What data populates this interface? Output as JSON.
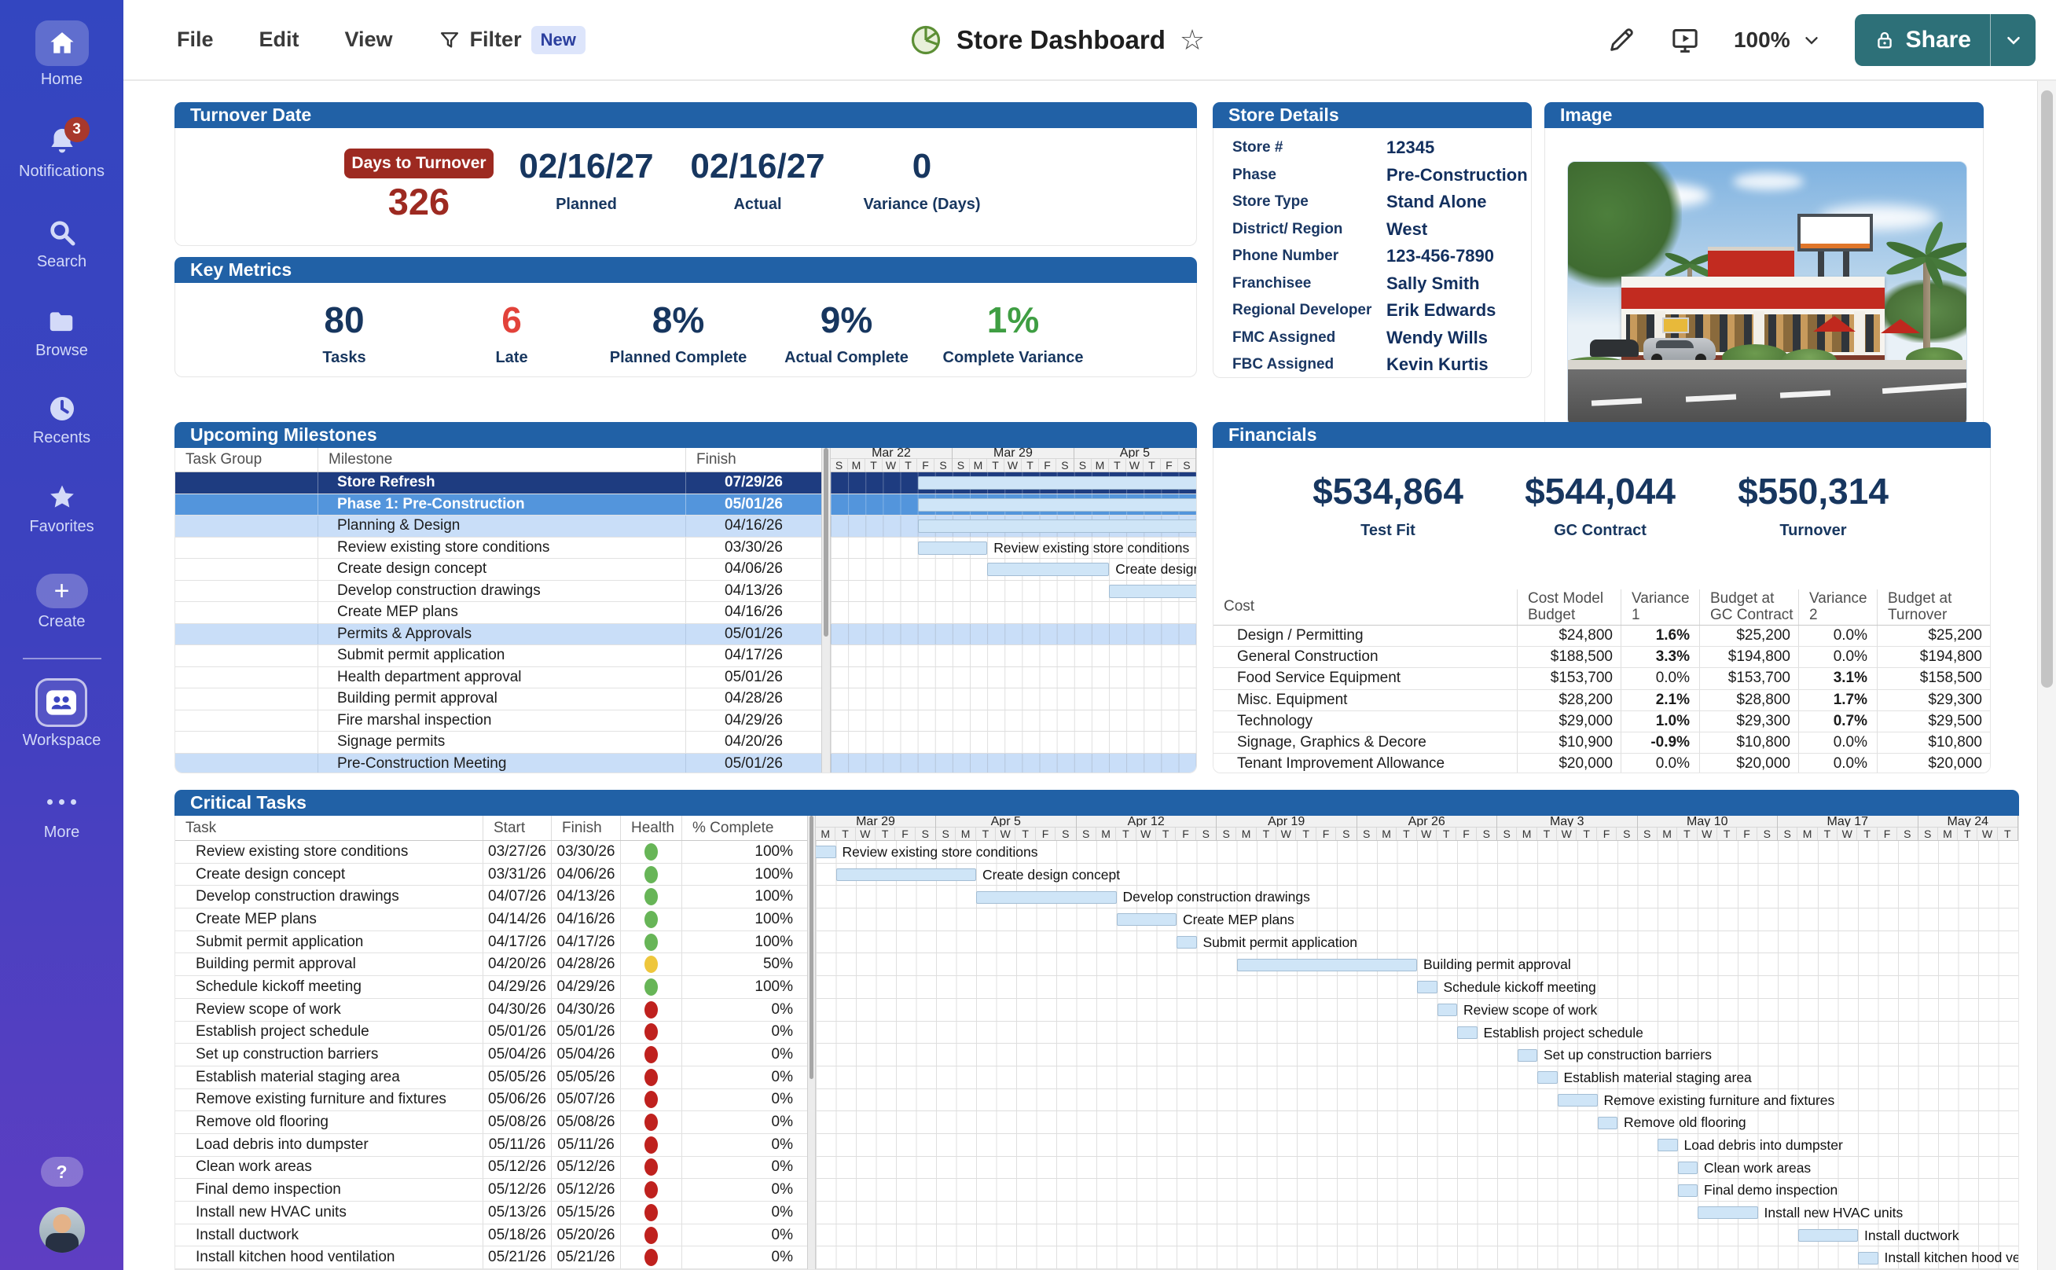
{
  "app": {
    "menu": [
      "File",
      "Edit",
      "View"
    ],
    "filter": {
      "label": "Filter",
      "badge": "New"
    },
    "title": "Store Dashboard",
    "zoom_level": "100%",
    "share_label": "Share"
  },
  "sidebar": {
    "items": [
      {
        "id": "home",
        "label": "Home",
        "icon": "home",
        "active": true
      },
      {
        "id": "notifications",
        "label": "Notifications",
        "icon": "bell",
        "badge": "3"
      },
      {
        "id": "search",
        "label": "Search",
        "icon": "search"
      },
      {
        "id": "browse",
        "label": "Browse",
        "icon": "folder"
      },
      {
        "id": "recents",
        "label": "Recents",
        "icon": "clock"
      },
      {
        "id": "favorites",
        "label": "Favorites",
        "icon": "star"
      },
      {
        "id": "create",
        "label": "Create",
        "icon": "plus",
        "divider_after": true
      },
      {
        "id": "workspace",
        "label": "Workspace",
        "icon": "people"
      },
      {
        "id": "more",
        "label": "More",
        "icon": "dots"
      }
    ],
    "help_label": "?"
  },
  "turnover": {
    "header": "Turnover Date",
    "badge_label": "Days to Turnover",
    "days_value": "326",
    "stats": [
      {
        "value": "02/16/27",
        "label": "Planned"
      },
      {
        "value": "02/16/27",
        "label": "Actual"
      },
      {
        "value": "0",
        "label": "Variance (Days)"
      }
    ]
  },
  "key_metrics": {
    "header": "Key Metrics",
    "items": [
      {
        "value": "80",
        "label": "Tasks",
        "color": "navy"
      },
      {
        "value": "6",
        "label": "Late",
        "color": "red"
      },
      {
        "value": "8%",
        "label": "Planned Complete",
        "color": "navy"
      },
      {
        "value": "9%",
        "label": "Actual Complete",
        "color": "navy"
      },
      {
        "value": "1%",
        "label": "Complete Variance",
        "color": "green"
      }
    ]
  },
  "store_details": {
    "header": "Store Details",
    "fields": [
      {
        "label": "Store #",
        "value": "12345"
      },
      {
        "label": "Phase",
        "value": "Pre-Construction"
      },
      {
        "label": "Store Type",
        "value": "Stand Alone"
      },
      {
        "label": "District/ Region",
        "value": "West"
      },
      {
        "label": "Phone Number",
        "value": "123-456-7890"
      },
      {
        "label": "Franchisee",
        "value": "Sally Smith"
      },
      {
        "label": "Regional Developer",
        "value": "Erik Edwards"
      },
      {
        "label": "FMC Assigned",
        "value": "Wendy Wills"
      },
      {
        "label": "FBC Assigned",
        "value": "Kevin Kurtis"
      }
    ]
  },
  "image_panel": {
    "header": "Image"
  },
  "milestones": {
    "header": "Upcoming Milestones",
    "columns": [
      "Task Group",
      "Milestone",
      "Finish"
    ],
    "rows": [
      {
        "milestone": "Store Refresh",
        "finish": "07/29/26",
        "style": "dark",
        "bar": {
          "start": "03/27/26",
          "end": "07/29/26",
          "show_label": false
        }
      },
      {
        "milestone": "Phase 1: Pre-Construction",
        "finish": "05/01/26",
        "style": "medium",
        "bar": {
          "start": "03/27/26",
          "end": "05/01/26",
          "show_label": false
        }
      },
      {
        "milestone": "Planning & Design",
        "finish": "04/16/26",
        "style": "light",
        "bar": {
          "start": "03/27/26",
          "end": "04/16/26",
          "show_label": false
        }
      },
      {
        "milestone": "Review existing store conditions",
        "finish": "03/30/26",
        "style": "plain",
        "bar": {
          "start": "03/27/26",
          "end": "03/30/26",
          "show_label": true
        }
      },
      {
        "milestone": "Create design concept",
        "finish": "04/06/26",
        "style": "plain",
        "bar": {
          "start": "03/31/26",
          "end": "04/06/26",
          "show_label": true
        }
      },
      {
        "milestone": "Develop construction drawings",
        "finish": "04/13/26",
        "style": "plain",
        "bar": {
          "start": "04/07/26",
          "end": "04/13/26",
          "show_label": true
        }
      },
      {
        "milestone": "Create MEP plans",
        "finish": "04/16/26",
        "style": "plain",
        "bar": {
          "start": "04/14/26",
          "end": "04/16/26",
          "show_label": false
        }
      },
      {
        "milestone": "Permits & Approvals",
        "finish": "05/01/26",
        "style": "light",
        "bar": {
          "start": "04/17/26",
          "end": "05/01/26",
          "show_label": false
        }
      },
      {
        "milestone": "Submit permit application",
        "finish": "04/17/26",
        "style": "plain",
        "bar": null
      },
      {
        "milestone": "Health department approval",
        "finish": "05/01/26",
        "style": "plain",
        "bar": null
      },
      {
        "milestone": "Building permit approval",
        "finish": "04/28/26",
        "style": "plain",
        "bar": null
      },
      {
        "milestone": "Fire marshal inspection",
        "finish": "04/29/26",
        "style": "plain",
        "bar": null
      },
      {
        "milestone": "Signage permits",
        "finish": "04/20/26",
        "style": "plain",
        "bar": null
      },
      {
        "milestone": "Pre-Construction Meeting",
        "finish": "05/01/26",
        "style": "light",
        "bar": null
      }
    ],
    "gantt": {
      "timeline_start": "03/22/26",
      "weeks": [
        {
          "label": "Mar 22",
          "days": [
            "S",
            "M",
            "T",
            "W",
            "T",
            "F",
            "S"
          ]
        },
        {
          "label": "Mar 29",
          "days": [
            "S",
            "M",
            "T",
            "W",
            "T",
            "F",
            "S"
          ]
        },
        {
          "label": "Apr 5",
          "days": [
            "S",
            "M",
            "T",
            "W",
            "T",
            "F",
            "S"
          ]
        }
      ]
    }
  },
  "financials": {
    "header": "Financials",
    "summary": [
      {
        "value": "$534,864",
        "label": "Test Fit"
      },
      {
        "value": "$544,044",
        "label": "GC Contract"
      },
      {
        "value": "$550,314",
        "label": "Turnover"
      }
    ],
    "cost_table": {
      "columns": [
        "Cost",
        "Cost Model Budget",
        "Variance 1",
        "Budget at GC Contract",
        "Variance 2",
        "Budget at Turnover"
      ],
      "rows": [
        {
          "name": "Design / Permitting",
          "cost_model": "$24,800",
          "variance1": "1.6%",
          "v1_color": "red",
          "gc_budget": "$25,200",
          "variance2": "0.0%",
          "v2_color": "normal",
          "turnover_budget": "$25,200"
        },
        {
          "name": "General Construction",
          "cost_model": "$188,500",
          "variance1": "3.3%",
          "v1_color": "red",
          "gc_budget": "$194,800",
          "variance2": "0.0%",
          "v2_color": "normal",
          "turnover_budget": "$194,800"
        },
        {
          "name": "Food Service Equipment",
          "cost_model": "$153,700",
          "variance1": "0.0%",
          "v1_color": "normal",
          "gc_budget": "$153,700",
          "variance2": "3.1%",
          "v2_color": "red",
          "turnover_budget": "$158,500"
        },
        {
          "name": "Misc. Equipment",
          "cost_model": "$28,200",
          "variance1": "2.1%",
          "v1_color": "red",
          "gc_budget": "$28,800",
          "variance2": "1.7%",
          "v2_color": "red",
          "turnover_budget": "$29,300"
        },
        {
          "name": "Technology",
          "cost_model": "$29,000",
          "variance1": "1.0%",
          "v1_color": "red",
          "gc_budget": "$29,300",
          "variance2": "0.7%",
          "v2_color": "red",
          "turnover_budget": "$29,500"
        },
        {
          "name": "Signage, Graphics & Decore",
          "cost_model": "$10,900",
          "variance1": "-0.9%",
          "v1_color": "green",
          "gc_budget": "$10,800",
          "variance2": "0.0%",
          "v2_color": "normal",
          "turnover_budget": "$10,800"
        },
        {
          "name": "Tenant Improvement Allowance",
          "cost_model": "$20,000",
          "variance1": "0.0%",
          "v1_color": "normal",
          "gc_budget": "$20,000",
          "variance2": "0.0%",
          "v2_color": "normal",
          "turnover_budget": "$20,000"
        }
      ]
    }
  },
  "critical": {
    "header": "Critical Tasks",
    "columns": [
      "Task",
      "Start",
      "Finish",
      "Health",
      "% Complete"
    ],
    "rows": [
      {
        "task": "Review existing store conditions",
        "start": "03/27/26",
        "finish": "03/30/26",
        "health": "green",
        "pct": "100%"
      },
      {
        "task": "Create design concept",
        "start": "03/31/26",
        "finish": "04/06/26",
        "health": "green",
        "pct": "100%"
      },
      {
        "task": "Develop construction drawings",
        "start": "04/07/26",
        "finish": "04/13/26",
        "health": "green",
        "pct": "100%"
      },
      {
        "task": "Create MEP plans",
        "start": "04/14/26",
        "finish": "04/16/26",
        "health": "green",
        "pct": "100%"
      },
      {
        "task": "Submit permit application",
        "start": "04/17/26",
        "finish": "04/17/26",
        "health": "green",
        "pct": "100%"
      },
      {
        "task": "Building permit approval",
        "start": "04/20/26",
        "finish": "04/28/26",
        "health": "yellow",
        "pct": "50%"
      },
      {
        "task": "Schedule kickoff meeting",
        "start": "04/29/26",
        "finish": "04/29/26",
        "health": "green",
        "pct": "100%"
      },
      {
        "task": "Review scope of work",
        "start": "04/30/26",
        "finish": "04/30/26",
        "health": "red",
        "pct": "0%"
      },
      {
        "task": "Establish project schedule",
        "start": "05/01/26",
        "finish": "05/01/26",
        "health": "red",
        "pct": "0%"
      },
      {
        "task": "Set up construction barriers",
        "start": "05/04/26",
        "finish": "05/04/26",
        "health": "red",
        "pct": "0%"
      },
      {
        "task": "Establish material staging area",
        "start": "05/05/26",
        "finish": "05/05/26",
        "health": "red",
        "pct": "0%"
      },
      {
        "task": "Remove existing furniture and fixtures",
        "start": "05/06/26",
        "finish": "05/07/26",
        "health": "red",
        "pct": "0%"
      },
      {
        "task": "Remove old flooring",
        "start": "05/08/26",
        "finish": "05/08/26",
        "health": "red",
        "pct": "0%"
      },
      {
        "task": "Load debris into dumpster",
        "start": "05/11/26",
        "finish": "05/11/26",
        "health": "red",
        "pct": "0%"
      },
      {
        "task": "Clean work areas",
        "start": "05/12/26",
        "finish": "05/12/26",
        "health": "red",
        "pct": "0%"
      },
      {
        "task": "Final demo inspection",
        "start": "05/12/26",
        "finish": "05/12/26",
        "health": "red",
        "pct": "0%"
      },
      {
        "task": "Install new HVAC units",
        "start": "05/13/26",
        "finish": "05/15/26",
        "health": "red",
        "pct": "0%"
      },
      {
        "task": "Install ductwork",
        "start": "05/18/26",
        "finish": "05/20/26",
        "health": "red",
        "pct": "0%"
      },
      {
        "task": "Install kitchen hood ventilation",
        "start": "05/21/26",
        "finish": "05/21/26",
        "health": "red",
        "pct": "0%"
      }
    ],
    "gantt": {
      "timeline_start": "03/30/26",
      "weeks": [
        {
          "label": "Mar 29",
          "days": [
            "M",
            "T",
            "W",
            "T",
            "F",
            "S"
          ]
        },
        {
          "label": "Apr 5",
          "days": [
            "S",
            "M",
            "T",
            "W",
            "T",
            "F",
            "S"
          ]
        },
        {
          "label": "Apr 12",
          "days": [
            "S",
            "M",
            "T",
            "W",
            "T",
            "F",
            "S"
          ]
        },
        {
          "label": "Apr 19",
          "days": [
            "S",
            "M",
            "T",
            "W",
            "T",
            "F",
            "S"
          ]
        },
        {
          "label": "Apr 26",
          "days": [
            "S",
            "M",
            "T",
            "W",
            "T",
            "F",
            "S"
          ]
        },
        {
          "label": "May 3",
          "days": [
            "S",
            "M",
            "T",
            "W",
            "T",
            "F",
            "S"
          ]
        },
        {
          "label": "May 10",
          "days": [
            "S",
            "M",
            "T",
            "W",
            "T",
            "F",
            "S"
          ]
        },
        {
          "label": "May 17",
          "days": [
            "S",
            "M",
            "T",
            "W",
            "T",
            "F",
            "S"
          ]
        },
        {
          "label": "May 24",
          "days": [
            "S",
            "M",
            "T",
            "W",
            "T"
          ]
        }
      ]
    }
  }
}
